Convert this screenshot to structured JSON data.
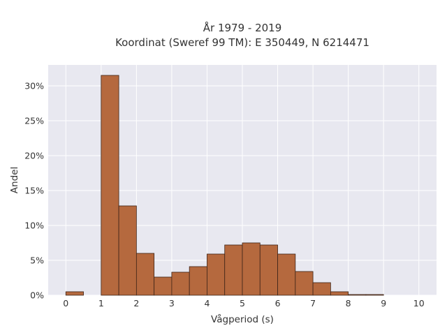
{
  "chart_data": {
    "type": "bar",
    "title": "År 1979 - 2019",
    "subtitle": "Koordinat (Sweref 99 TM): E 350449, N 6214471",
    "xlabel": "Vågperiod (s)",
    "ylabel": "Andel",
    "xlim": [
      -0.5,
      10.5
    ],
    "ylim": [
      0,
      0.33
    ],
    "x_ticks": [
      0,
      1,
      2,
      3,
      4,
      5,
      6,
      7,
      8,
      9,
      10
    ],
    "y_ticks": [
      0,
      0.05,
      0.1,
      0.15,
      0.2,
      0.25,
      0.3
    ],
    "y_tick_labels": [
      "0%",
      "5%",
      "10%",
      "15%",
      "20%",
      "25%",
      "30%"
    ],
    "bin_width": 0.5,
    "bins": [
      {
        "start": 0.0,
        "value": 0.005
      },
      {
        "start": 0.5,
        "value": 0.0
      },
      {
        "start": 1.0,
        "value": 0.315
      },
      {
        "start": 1.5,
        "value": 0.128
      },
      {
        "start": 2.0,
        "value": 0.06
      },
      {
        "start": 2.5,
        "value": 0.026
      },
      {
        "start": 3.0,
        "value": 0.033
      },
      {
        "start": 3.5,
        "value": 0.041
      },
      {
        "start": 4.0,
        "value": 0.059
      },
      {
        "start": 4.5,
        "value": 0.072
      },
      {
        "start": 5.0,
        "value": 0.075
      },
      {
        "start": 5.5,
        "value": 0.072
      },
      {
        "start": 6.0,
        "value": 0.059
      },
      {
        "start": 6.5,
        "value": 0.034
      },
      {
        "start": 7.0,
        "value": 0.018
      },
      {
        "start": 7.5,
        "value": 0.005
      },
      {
        "start": 8.0,
        "value": 0.001
      },
      {
        "start": 8.5,
        "value": 0.001
      }
    ],
    "bar_color": "#B5693E",
    "bar_edge_color": "#3d2418",
    "plot_background": "#E8E8F0",
    "grid": true,
    "grid_color": "#ffffff"
  }
}
